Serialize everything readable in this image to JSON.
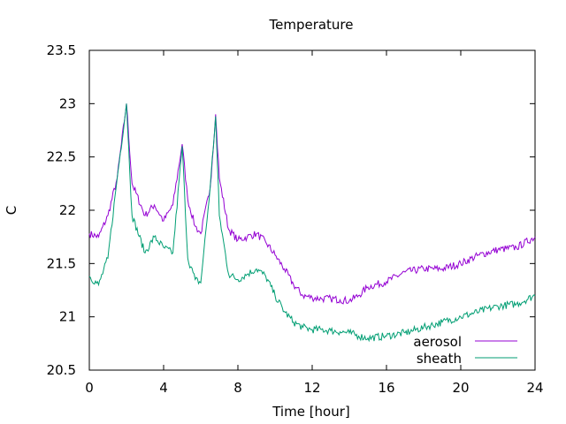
{
  "chart_data": {
    "type": "line",
    "title": "Temperature",
    "xlabel": "Time [hour]",
    "ylabel": "C",
    "xlim": [
      0,
      24
    ],
    "ylim": [
      20.5,
      23.5
    ],
    "xticks": [
      0,
      4,
      8,
      12,
      16,
      20,
      24
    ],
    "yticks": [
      20.5,
      21,
      21.5,
      22,
      22.5,
      23,
      23.5
    ],
    "ytick_labels": [
      "20.5",
      "21",
      "21.5",
      "22",
      "22.5",
      "23",
      "23.5"
    ],
    "grid": false,
    "legend_position": "bottom-right",
    "series": [
      {
        "name": "aerosol",
        "color": "#9400d3",
        "x": [
          0,
          0.5,
          1,
          1.5,
          2,
          2.3,
          3,
          3.5,
          4,
          4.5,
          5,
          5.3,
          5.7,
          6,
          6.5,
          6.8,
          7,
          7.5,
          8,
          8.5,
          9,
          9.5,
          10,
          10.5,
          11,
          11.5,
          12,
          12.5,
          13,
          13.5,
          14,
          14.5,
          15,
          16,
          17,
          18,
          19,
          20,
          21,
          22,
          23,
          24
        ],
        "y": [
          21.78,
          21.75,
          21.95,
          22.3,
          23.0,
          22.25,
          21.95,
          22.05,
          21.9,
          22.05,
          22.62,
          22.1,
          21.85,
          21.78,
          22.2,
          22.9,
          22.3,
          21.82,
          21.72,
          21.75,
          21.78,
          21.7,
          21.58,
          21.45,
          21.3,
          21.2,
          21.18,
          21.17,
          21.17,
          21.16,
          21.15,
          21.2,
          21.28,
          21.33,
          21.42,
          21.45,
          21.45,
          21.5,
          21.58,
          21.63,
          21.65,
          21.75
        ]
      },
      {
        "name": "sheath",
        "color": "#009e73",
        "x": [
          0,
          0.5,
          1,
          1.5,
          2,
          2.3,
          3,
          3.5,
          4,
          4.5,
          5,
          5.3,
          5.7,
          6,
          6.5,
          6.8,
          7,
          7.5,
          8,
          8.5,
          9,
          9.5,
          10,
          10.5,
          11,
          11.5,
          12,
          12.5,
          13,
          13.5,
          14,
          14.5,
          15,
          16,
          17,
          18,
          19,
          20,
          21,
          22,
          23,
          24
        ],
        "y": [
          21.38,
          21.3,
          21.55,
          22.3,
          23.0,
          21.95,
          21.6,
          21.75,
          21.65,
          21.6,
          22.6,
          21.55,
          21.35,
          21.32,
          22.2,
          22.88,
          21.95,
          21.4,
          21.35,
          21.4,
          21.45,
          21.38,
          21.2,
          21.05,
          20.95,
          20.9,
          20.88,
          20.88,
          20.87,
          20.86,
          20.85,
          20.82,
          20.8,
          20.82,
          20.85,
          20.9,
          20.95,
          21.0,
          21.05,
          21.1,
          21.12,
          21.2
        ]
      }
    ]
  }
}
